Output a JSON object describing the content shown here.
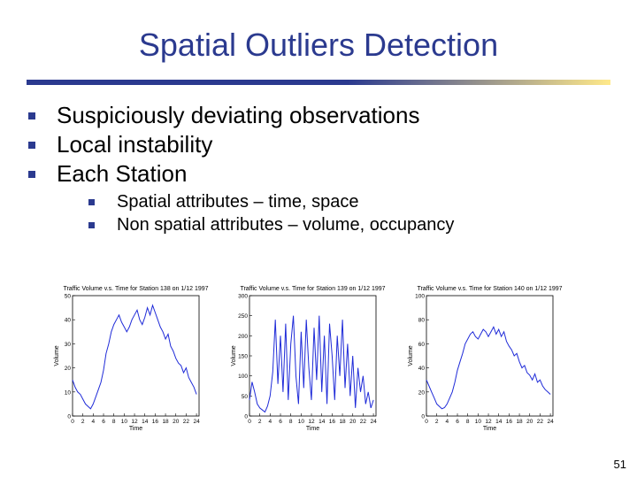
{
  "slide": {
    "title": "Spatial Outliers Detection",
    "page_number": "51"
  },
  "bullets": [
    {
      "text": "Suspiciously deviating observations"
    },
    {
      "text": "Local instability"
    },
    {
      "text": "Each Station",
      "sub": [
        "Spatial attributes – time, space",
        "Non spatial attributes – volume, occupancy"
      ]
    }
  ],
  "accent_color": "#2b3a8f",
  "chart_data": [
    {
      "type": "line",
      "title": "Traffic Volume v.s. Time for Station 138 on 1/12 1997",
      "xlabel": "Time",
      "ylabel": "Volume",
      "xlim": [
        0,
        24.5
      ],
      "ylim": [
        0,
        50
      ],
      "xticks": [
        0,
        2,
        4,
        6,
        8,
        10,
        12,
        14,
        16,
        18,
        20,
        22,
        24
      ],
      "yticks": [
        0,
        10,
        20,
        30,
        40,
        50
      ],
      "series": [
        {
          "x": [
            0,
            0.5,
            1,
            1.5,
            2,
            2.5,
            3,
            3.5,
            4,
            4.5,
            5,
            5.5,
            6,
            6.5,
            7,
            7.5,
            8,
            8.5,
            9,
            9.5,
            10,
            10.5,
            11,
            11.5,
            12,
            12.5,
            13,
            13.5,
            14,
            14.5,
            15,
            15.5,
            16,
            16.5,
            17,
            17.5,
            18,
            18.5,
            19,
            19.5,
            20,
            20.5,
            21,
            21.5,
            22,
            22.5,
            23,
            23.5,
            24
          ],
          "y": [
            15,
            12,
            10,
            9,
            7,
            5,
            4,
            3,
            5,
            8,
            11,
            14,
            19,
            26,
            30,
            35,
            38,
            40,
            42,
            39,
            37,
            35,
            37,
            40,
            42,
            44,
            40,
            38,
            41,
            45,
            42,
            46,
            43,
            40,
            37,
            35,
            32,
            34,
            29,
            27,
            24,
            22,
            21,
            18,
            20,
            16,
            14,
            12,
            9
          ]
        }
      ]
    },
    {
      "type": "line",
      "title": "Traffic Volume v.s. Time for Station 139 on 1/12 1997",
      "xlabel": "Time",
      "ylabel": "Volume",
      "xlim": [
        0,
        24.5
      ],
      "ylim": [
        0,
        300
      ],
      "xticks": [
        0,
        2,
        4,
        6,
        8,
        10,
        12,
        14,
        16,
        18,
        20,
        22,
        24
      ],
      "yticks": [
        0,
        50,
        100,
        150,
        200,
        250,
        300
      ],
      "series": [
        {
          "x": [
            0,
            0.5,
            1,
            1.5,
            2,
            2.5,
            3,
            3.5,
            4,
            4.5,
            5,
            5.5,
            6,
            6.5,
            7,
            7.5,
            8,
            8.5,
            9,
            9.5,
            10,
            10.5,
            11,
            11.5,
            12,
            12.5,
            13,
            13.5,
            14,
            14.5,
            15,
            15.5,
            16,
            16.5,
            17,
            17.5,
            18,
            18.5,
            19,
            19.5,
            20,
            20.5,
            21,
            21.5,
            22,
            22.5,
            23,
            23.5,
            24
          ],
          "y": [
            40,
            85,
            60,
            30,
            20,
            15,
            10,
            25,
            50,
            110,
            240,
            80,
            200,
            60,
            230,
            40,
            180,
            250,
            100,
            30,
            210,
            70,
            240,
            120,
            40,
            220,
            90,
            250,
            60,
            200,
            30,
            230,
            150,
            40,
            200,
            100,
            240,
            70,
            180,
            50,
            150,
            20,
            120,
            60,
            100,
            30,
            60,
            20,
            40
          ]
        }
      ]
    },
    {
      "type": "line",
      "title": "Traffic Volume v.s. Time for Station 140 on 1/12 1997",
      "xlabel": "Time",
      "ylabel": "Volume",
      "xlim": [
        0,
        24.5
      ],
      "ylim": [
        0,
        100
      ],
      "xticks": [
        0,
        2,
        4,
        6,
        8,
        10,
        12,
        14,
        16,
        18,
        20,
        22,
        24
      ],
      "yticks": [
        0,
        20,
        40,
        60,
        80,
        100
      ],
      "series": [
        {
          "x": [
            0,
            0.5,
            1,
            1.5,
            2,
            2.5,
            3,
            3.5,
            4,
            4.5,
            5,
            5.5,
            6,
            6.5,
            7,
            7.5,
            8,
            8.5,
            9,
            9.5,
            10,
            10.5,
            11,
            11.5,
            12,
            12.5,
            13,
            13.5,
            14,
            14.5,
            15,
            15.5,
            16,
            16.5,
            17,
            17.5,
            18,
            18.5,
            19,
            19.5,
            20,
            20.5,
            21,
            21.5,
            22,
            22.5,
            23,
            23.5,
            24
          ],
          "y": [
            30,
            25,
            20,
            15,
            10,
            8,
            6,
            7,
            10,
            15,
            20,
            28,
            38,
            45,
            52,
            60,
            64,
            68,
            70,
            66,
            64,
            68,
            72,
            70,
            66,
            70,
            74,
            68,
            72,
            66,
            70,
            62,
            58,
            55,
            50,
            52,
            45,
            40,
            42,
            36,
            34,
            30,
            35,
            28,
            30,
            25,
            22,
            20,
            18
          ]
        }
      ]
    }
  ]
}
